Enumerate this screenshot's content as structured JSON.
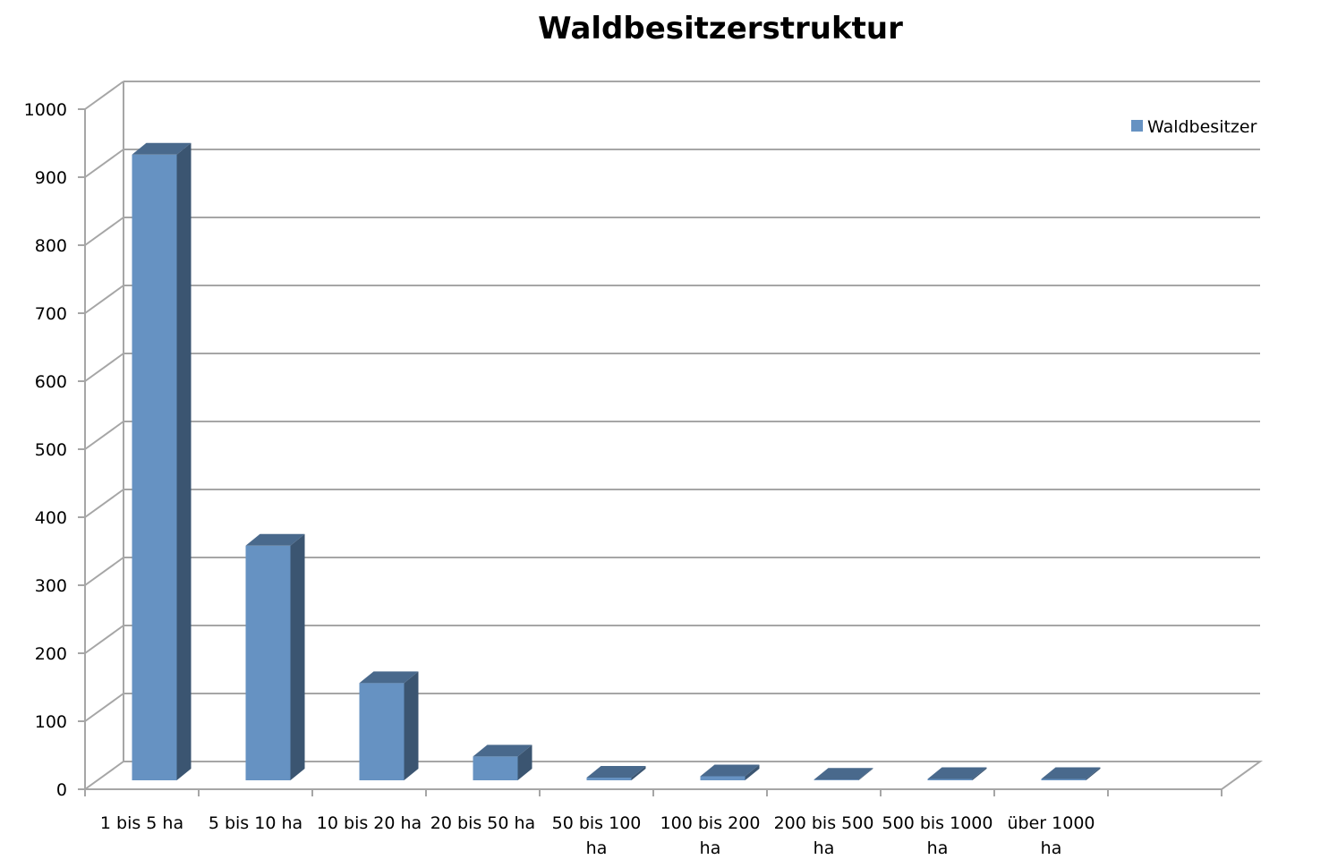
{
  "chart_data": {
    "type": "bar",
    "title": "Waldbesitzerstruktur",
    "xlabel": "",
    "ylabel": "",
    "ylim": [
      0,
      1000
    ],
    "yticks": [
      0,
      100,
      200,
      300,
      400,
      500,
      600,
      700,
      800,
      900,
      1000
    ],
    "categories": [
      [
        "1 bis 5 ha"
      ],
      [
        "5 bis 10 ha"
      ],
      [
        "10 bis 20 ha"
      ],
      [
        "20 bis 50 ha"
      ],
      [
        "50 bis 100",
        "ha"
      ],
      [
        "100 bis 200",
        "ha"
      ],
      [
        "200 bis 500",
        "ha"
      ],
      [
        "500 bis 1000",
        "ha"
      ],
      [
        "über 1000",
        "ha"
      ]
    ],
    "series": [
      {
        "name": "Waldbesitzer",
        "color": "#6692c2",
        "values": [
          920,
          345,
          143,
          35,
          4,
          6,
          1,
          2,
          2
        ]
      }
    ],
    "grid": true,
    "legend": "top-right",
    "style": "3d-column"
  }
}
